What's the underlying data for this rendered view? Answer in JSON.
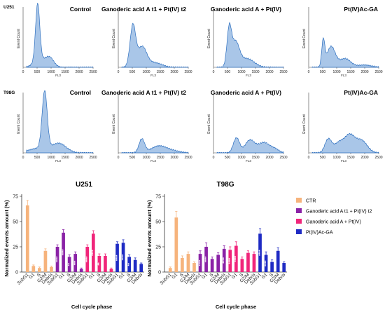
{
  "histogram_panel": {
    "yaxis_label": "Event Count",
    "xaxis_label": "FL3",
    "xticks": [
      "0",
      "500",
      "1000",
      "1500",
      "2000",
      "2500"
    ],
    "x_range": [
      0,
      2500
    ],
    "fill_color": "#a9c6e8",
    "line_color": "#2d6fbf",
    "rows": [
      {
        "cell_line": "U251",
        "titles": [
          "Control",
          "Ganoderic acid A t1 + Pt(IV) t2",
          "Ganoderic acid A + Pt(IV)",
          "Pt(IV)Ac-GA"
        ]
      },
      {
        "cell_line": "T98G",
        "titles": [
          "Control",
          "Ganoderic acid A t1 + Pt(IV) t2",
          "Ganoderic acid A + Pt(IV)",
          "Pt(IV)Ac-GA"
        ]
      }
    ]
  },
  "bar_panel": {
    "ylabel": "Normalized events amount (%)",
    "xlabel": "Cell cycle phase",
    "categories": [
      "SubG1",
      "G1",
      "S",
      "G2/M",
      "Debris"
    ],
    "legend": [
      {
        "name": "CTR",
        "color": "#f6b37c"
      },
      {
        "name": "Ganoderic acid A t1 + Pt(IV) t2",
        "color": "#8a22a6"
      },
      {
        "name": "Ganoderic acid A + Pt(IV)",
        "color": "#f0257a"
      },
      {
        "name": "Pt(IV)Ac-GA",
        "color": "#1f2bc4"
      }
    ],
    "legend_position": "right"
  },
  "chart_data": [
    {
      "type": "bar",
      "title": "U251",
      "xlabel": "Cell cycle phase",
      "ylabel": "Normalized events amount (%)",
      "ylim": [
        0,
        75
      ],
      "yticks": [
        0,
        25,
        50,
        75
      ],
      "categories": [
        "SubG1",
        "G1",
        "S",
        "G2/M",
        "Debris"
      ],
      "series": [
        {
          "name": "CTR",
          "color": "#f6b37c",
          "values": [
            66,
            6,
            4,
            21,
            5
          ],
          "errors": [
            5,
            1,
            1,
            2,
            1
          ],
          "marks": [
            "",
            "",
            "",
            "",
            ""
          ]
        },
        {
          "name": "Ganoderic acid A t1 + Pt(IV) t2",
          "color": "#8a22a6",
          "values": [
            25,
            39,
            15,
            18,
            3
          ],
          "errors": [
            2,
            3,
            2,
            2,
            1
          ],
          "marks": [
            "****",
            "****",
            "**",
            "***",
            ""
          ]
        },
        {
          "name": "Ganoderic acid A + Pt(IV)",
          "color": "#f0257a",
          "values": [
            25,
            38,
            16,
            16,
            3
          ],
          "errors": [
            2,
            3,
            2,
            2,
            1
          ],
          "marks": [
            "****",
            "****",
            "**",
            "",
            ""
          ]
        },
        {
          "name": "Pt(IV)Ac-GA",
          "color": "#1f2bc4",
          "values": [
            28,
            29,
            15,
            12,
            8
          ],
          "errors": [
            2,
            3,
            2,
            2,
            1
          ],
          "marks": [
            "****",
            "****",
            "**",
            "",
            ""
          ]
        }
      ]
    },
    {
      "type": "bar",
      "title": "T98G",
      "xlabel": "Cell cycle phase",
      "ylabel": "Normalized events amount (%)",
      "ylim": [
        0,
        75
      ],
      "yticks": [
        0,
        25,
        50,
        75
      ],
      "categories": [
        "SubG1",
        "G1",
        "S",
        "G2/M",
        "Debris"
      ],
      "series": [
        {
          "name": "CTR",
          "color": "#f6b37c",
          "values": [
            4,
            54,
            14,
            18,
            9
          ],
          "errors": [
            1,
            6,
            2,
            2,
            1
          ],
          "marks": [
            "",
            "",
            "",
            "",
            ""
          ]
        },
        {
          "name": "Ganoderic acid A t1 + Pt(IV) t2",
          "color": "#8a22a6",
          "values": [
            18,
            25,
            13,
            17,
            23
          ],
          "errors": [
            3,
            4,
            2,
            2,
            3
          ],
          "marks": [
            "****",
            "****",
            "",
            "",
            "****"
          ]
        },
        {
          "name": "Ganoderic acid A + Pt(IV)",
          "color": "#f0257a",
          "values": [
            22,
            26,
            13,
            19,
            18
          ],
          "errors": [
            3,
            4,
            2,
            2,
            2
          ],
          "marks": [
            "****",
            "****",
            "",
            "",
            ""
          ]
        },
        {
          "name": "Pt(IV)Ac-GA",
          "color": "#1f2bc4",
          "values": [
            38,
            17,
            10,
            21,
            9
          ],
          "errors": [
            5,
            3,
            2,
            3,
            1
          ],
          "marks": [
            "****",
            "****",
            "",
            "",
            ""
          ]
        }
      ]
    }
  ]
}
